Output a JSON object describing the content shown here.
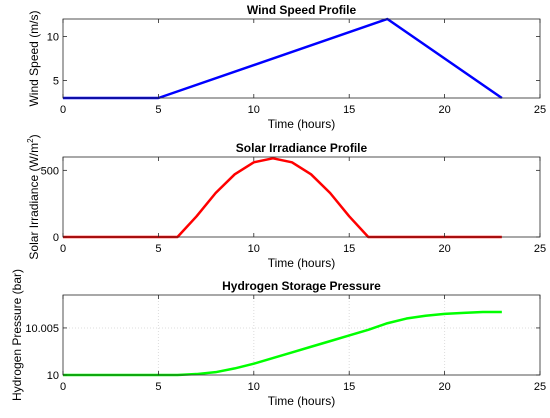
{
  "chart_data": [
    {
      "type": "line",
      "title": "Wind Speed Profile",
      "xlabel": "Time (hours)",
      "ylabel": "Wind Speed (m/s)",
      "xlim": [
        0,
        25
      ],
      "ylim": [
        3,
        12
      ],
      "xticks": [
        0,
        5,
        10,
        15,
        20,
        25
      ],
      "yticks": [
        5,
        10
      ],
      "grid": false,
      "color": "#0000ff",
      "series": [
        {
          "x": [
            0,
            5,
            17,
            23
          ],
          "y": [
            3,
            3,
            12,
            3
          ]
        }
      ]
    },
    {
      "type": "line",
      "title": "Solar Irradiance Profile",
      "xlabel": "Time (hours)",
      "ylabel_main": "Solar Irradiance (W/m",
      "ylabel_sup": "2",
      "ylabel_end": ")",
      "xlim": [
        0,
        25
      ],
      "ylim": [
        0,
        600
      ],
      "xticks": [
        0,
        5,
        10,
        15,
        20,
        25
      ],
      "yticks": [
        0,
        500
      ],
      "grid": false,
      "color": "#ff0000",
      "series": [
        {
          "x": [
            0,
            6,
            7,
            8,
            9,
            10,
            11,
            12,
            13,
            14,
            15,
            16,
            23
          ],
          "y": [
            0,
            0,
            155,
            330,
            470,
            560,
            590,
            560,
            470,
            330,
            155,
            0,
            0
          ]
        }
      ]
    },
    {
      "type": "line",
      "title": "Hydrogen Storage Pressure",
      "xlabel": "Time (hours)",
      "ylabel": "Hydrogen Pressure (bar)",
      "xlim": [
        0,
        25
      ],
      "ylim": [
        10,
        10.0085
      ],
      "xticks": [
        0,
        5,
        10,
        15,
        20,
        25
      ],
      "yticks": [
        10,
        10.005
      ],
      "ytick_labels": [
        "10",
        "10.005"
      ],
      "grid": true,
      "color": "#00ff00",
      "series": [
        {
          "x": [
            0,
            6,
            7,
            8,
            9,
            10,
            11,
            12,
            13,
            14,
            15,
            16,
            17,
            18,
            19,
            20,
            21,
            22,
            23
          ],
          "y": [
            10,
            10,
            10.0001,
            10.0003,
            10.0007,
            10.0012,
            10.0018,
            10.0024,
            10.003,
            10.0036,
            10.0042,
            10.0048,
            10.0055,
            10.006,
            10.0063,
            10.0065,
            10.0066,
            10.0067,
            10.0067
          ]
        }
      ]
    }
  ]
}
